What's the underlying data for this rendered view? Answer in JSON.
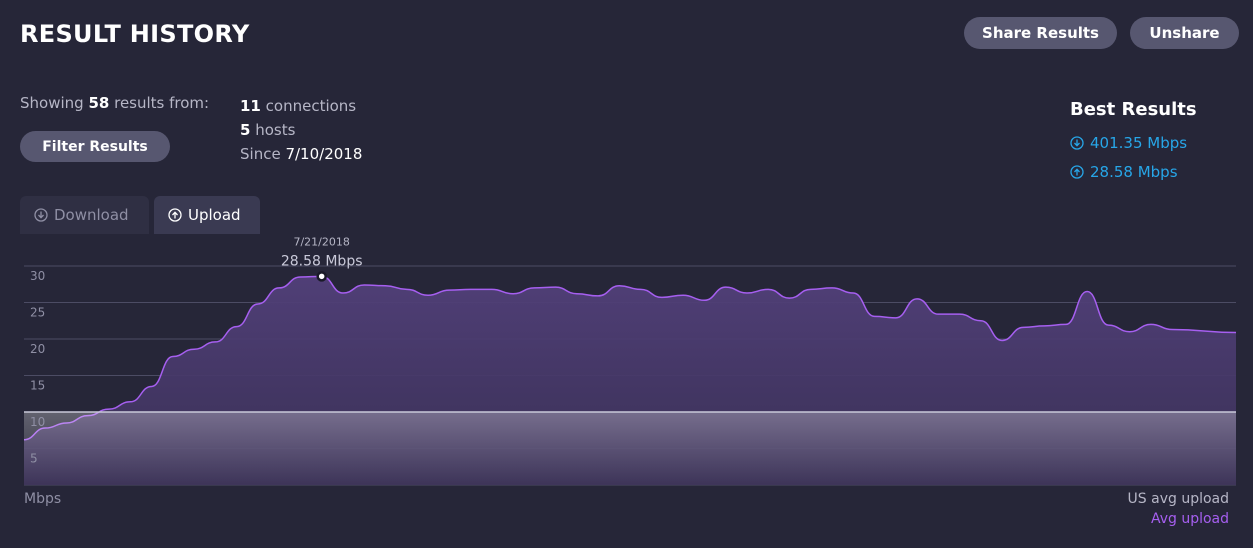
{
  "header": {
    "title": "RESULT HISTORY",
    "share_label": "Share Results",
    "unshare_label": "Unshare"
  },
  "summary": {
    "showing_prefix": "Showing",
    "result_count": "58",
    "showing_suffix": "results from:",
    "filter_label": "Filter Results",
    "connections_count": "11",
    "connections_label": "connections",
    "hosts_count": "5",
    "hosts_label": "hosts",
    "since_label": "Since",
    "since_date": "7/10/2018"
  },
  "best_results": {
    "title": "Best Results",
    "download": {
      "icon": "download-arrow-icon",
      "value": "401.35 Mbps"
    },
    "upload": {
      "icon": "upload-arrow-icon",
      "value": "28.58 Mbps"
    },
    "color": "#27a6e8"
  },
  "tabs": [
    {
      "label": "Download",
      "icon": "download-arrow-icon",
      "active": false
    },
    {
      "label": "Upload",
      "icon": "upload-arrow-icon",
      "active": true
    }
  ],
  "chart_data": {
    "type": "area",
    "x": [
      0,
      1,
      2,
      3,
      4,
      5,
      6,
      7,
      8,
      9,
      10,
      11,
      12,
      13,
      14,
      15,
      16,
      17,
      18,
      19,
      20,
      21,
      22,
      23,
      24,
      25,
      26,
      27,
      28,
      29,
      30,
      31,
      32,
      33,
      34,
      35,
      36,
      37,
      38,
      39,
      40,
      41,
      42,
      43,
      44,
      45,
      46,
      47,
      48,
      49,
      50,
      51,
      52,
      53,
      54,
      55,
      56,
      57
    ],
    "series": [
      {
        "values": [
          6.2,
          7.8,
          8.5,
          9.5,
          10.4,
          11.4,
          13.5,
          17.6,
          18.6,
          19.6,
          21.7,
          24.8,
          27.0,
          28.5,
          28.58,
          26.3,
          27.4,
          27.3,
          26.8,
          26.0,
          26.7,
          26.8,
          26.8,
          26.2,
          27.0,
          27.1,
          26.2,
          25.9,
          27.3,
          26.8,
          25.7,
          26.0,
          25.3,
          27.1,
          26.3,
          26.8,
          25.6,
          26.8,
          27.0,
          26.3,
          23.1,
          22.9,
          25.5,
          23.4,
          23.4,
          22.5,
          19.8,
          21.6,
          21.8,
          22.0,
          26.5,
          21.9,
          21.0,
          22.0,
          21.3,
          null,
          null,
          null
        ],
        "color": "#a65ff0"
      }
    ],
    "reference_lines": [
      {
        "label": "US avg upload",
        "value": 10
      }
    ],
    "tooltip": {
      "date": "7/21/2018",
      "value": "28.58 Mbps"
    },
    "yticks": [
      5,
      10,
      15,
      20,
      25,
      30
    ],
    "ylim": [
      0,
      30
    ],
    "ylabel": "Mbps",
    "legend": [
      "US avg upload",
      "Avg upload"
    ],
    "legend_placement": "bottom-right",
    "grid": true,
    "fill_color": "#4a3966",
    "grid_color": "#4c4c64"
  }
}
